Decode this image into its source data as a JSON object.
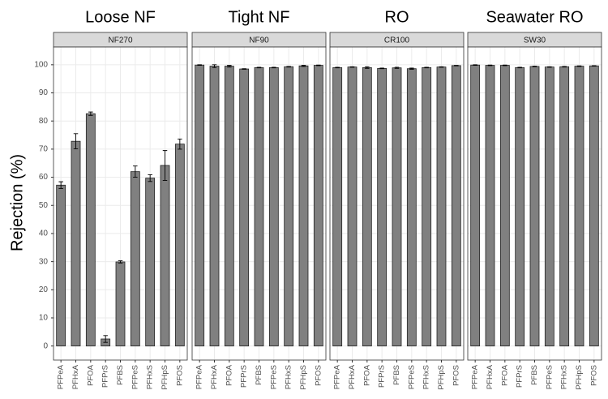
{
  "chart_data": [
    {
      "type": "bar",
      "title": "Loose NF",
      "subtitle": "NF270",
      "ylabel": "Rejection (%)",
      "categories": [
        "PFPeA",
        "PFHxA",
        "PFOA",
        "PFPrS",
        "PFBS",
        "PFPeS",
        "PFHxS",
        "PFHpS",
        "PFOS"
      ],
      "values": [
        57.2,
        72.8,
        82.6,
        2.5,
        29.9,
        62,
        59.7,
        64.2,
        71.8
      ],
      "errors": [
        1.2,
        2.7,
        0.6,
        1.2,
        0.4,
        2,
        1.2,
        5.3,
        1.8
      ],
      "ylim": [
        -5,
        106.3
      ],
      "yticks": [
        0,
        10,
        20,
        30,
        40,
        50,
        60,
        70,
        80,
        90,
        100
      ],
      "grid": true,
      "color": "#808080"
    },
    {
      "type": "bar",
      "title": "Tight NF",
      "subtitle": "NF90",
      "categories": [
        "PFPeA",
        "PFHxA",
        "PFOA",
        "PFPrS",
        "PFBS",
        "PFPeS",
        "PFHxS",
        "PFHpS",
        "PFOS"
      ],
      "values": [
        99.9,
        99.5,
        99.5,
        98.5,
        99,
        99,
        99.3,
        99.6,
        99.8
      ],
      "errors": [
        0.1,
        0.5,
        0.3,
        0.1,
        0.1,
        0.1,
        0.1,
        0.2,
        0.1
      ],
      "ylim": [
        -5,
        106.3
      ],
      "yticks": [
        0,
        10,
        20,
        30,
        40,
        50,
        60,
        70,
        80,
        90,
        100
      ],
      "grid": true,
      "color": "#808080"
    },
    {
      "type": "bar",
      "title": "RO",
      "subtitle": "CR100",
      "categories": [
        "PFPeA",
        "PFHxA",
        "PFOA",
        "PFPrS",
        "PFBS",
        "PFPeS",
        "PFHxS",
        "PFHpS",
        "PFOS"
      ],
      "values": [
        99,
        99.2,
        99,
        98.7,
        98.9,
        98.6,
        99,
        99.2,
        99.7
      ],
      "errors": [
        0.1,
        0.1,
        0.3,
        0.1,
        0.2,
        0.2,
        0.1,
        0.1,
        0.1
      ],
      "ylim": [
        -5,
        106.3
      ],
      "yticks": [
        0,
        10,
        20,
        30,
        40,
        50,
        60,
        70,
        80,
        90,
        100
      ],
      "grid": true,
      "color": "#808080"
    },
    {
      "type": "bar",
      "title": "Seawater RO",
      "subtitle": "SW30",
      "categories": [
        "PFPeA",
        "PFHxA",
        "PFOA",
        "PFPrS",
        "PFBS",
        "PFPeS",
        "PFHxS",
        "PFHpS",
        "PFOS"
      ],
      "values": [
        99.9,
        99.8,
        99.8,
        99,
        99.4,
        99.2,
        99.3,
        99.5,
        99.6
      ],
      "errors": [
        0.1,
        0.1,
        0.1,
        0.1,
        0.1,
        0.1,
        0.1,
        0.1,
        0.1
      ],
      "ylim": [
        -5,
        106.3
      ],
      "yticks": [
        0,
        10,
        20,
        30,
        40,
        50,
        60,
        70,
        80,
        90,
        100
      ],
      "grid": true,
      "color": "#808080"
    }
  ]
}
